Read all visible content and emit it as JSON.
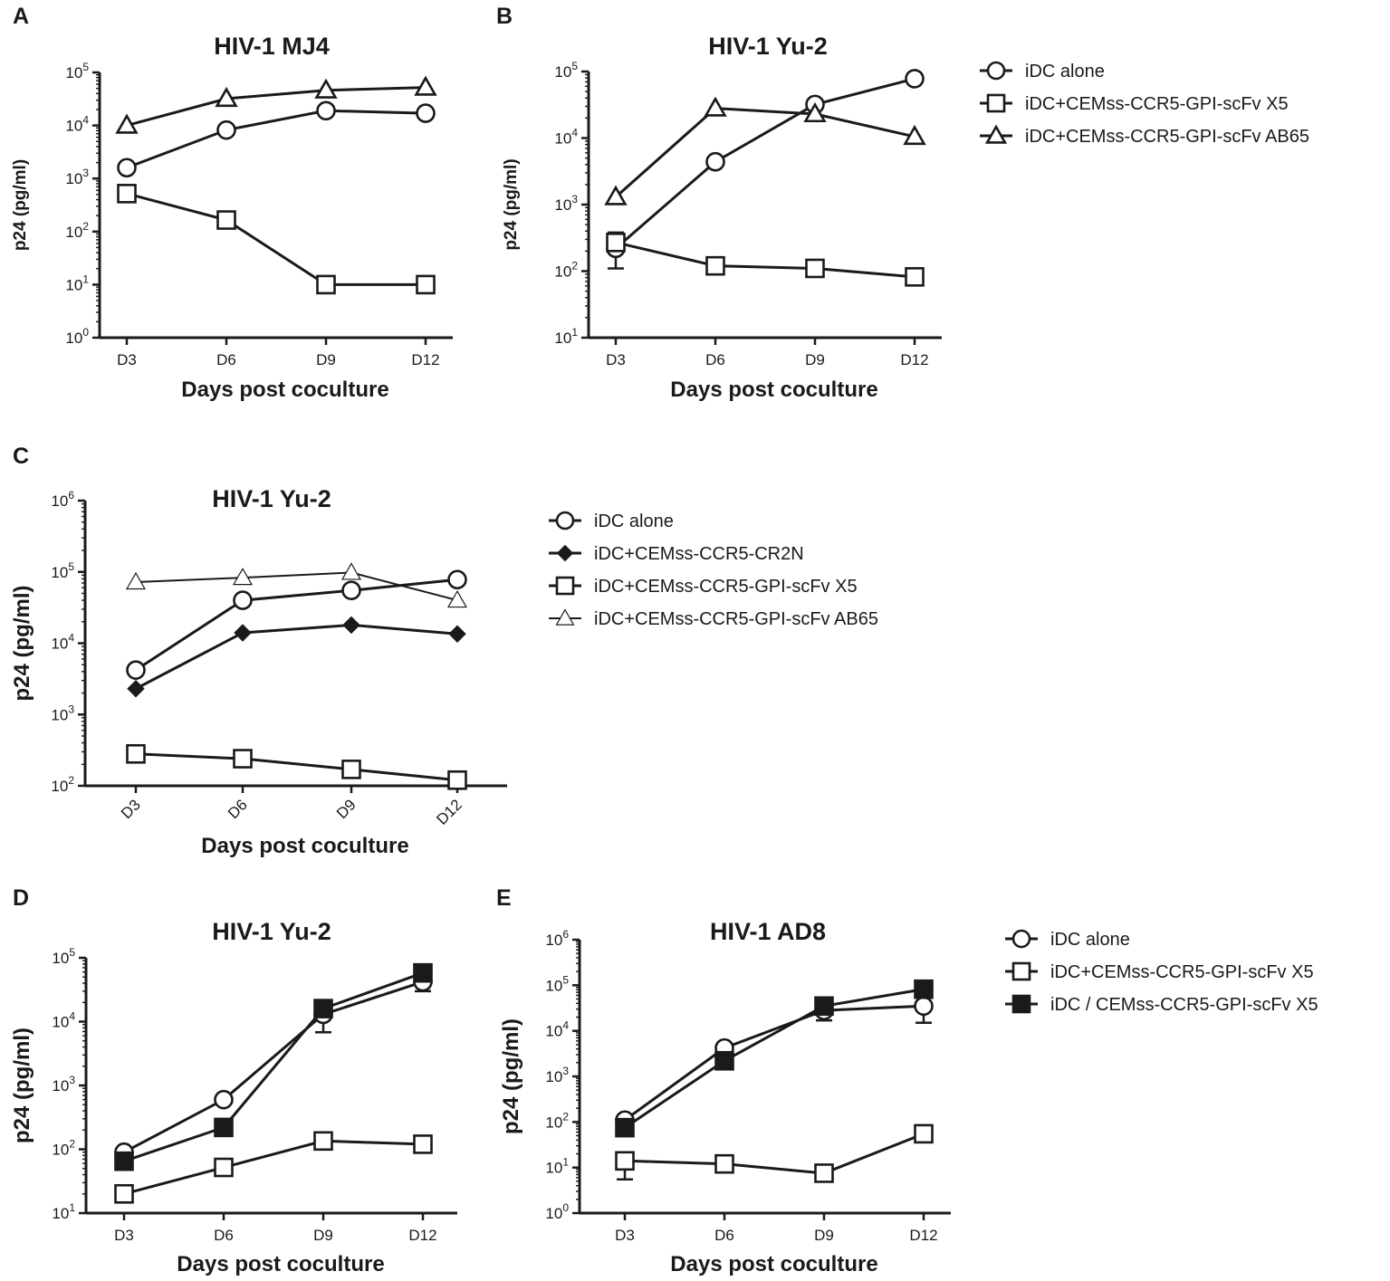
{
  "figure": {
    "colors": {
      "ink": "#1a1a1a",
      "background": "#ffffff"
    }
  },
  "chart_data": [
    {
      "panel": "A",
      "type": "line",
      "title": "HIV-1 MJ4",
      "xlabel": "Days post coculture",
      "ylabel": "p24 (pg/ml)",
      "yscale": "log",
      "ylim": [
        1,
        100000
      ],
      "categories": [
        "D3",
        "D6",
        "D9",
        "D12"
      ],
      "series": [
        {
          "name": "iDC alone",
          "marker": "circle",
          "values": [
            1600,
            8200,
            19000,
            17000
          ]
        },
        {
          "name": "iDC+CEMss-CCR5-GPI-scFv X5",
          "marker": "square",
          "values": [
            520,
            165,
            10,
            10
          ]
        },
        {
          "name": "iDC+CEMss-CCR5-GPI-scFv AB65",
          "marker": "triangle",
          "values": [
            10000,
            32000,
            46000,
            52000
          ]
        }
      ]
    },
    {
      "panel": "B",
      "type": "line",
      "title": "HIV-1 Yu-2",
      "xlabel": "Days post coculture",
      "ylabel": "p24 (pg/ml)",
      "yscale": "log",
      "ylim": [
        10,
        100000
      ],
      "categories": [
        "D3",
        "D6",
        "D9",
        "D12"
      ],
      "legend": [
        "iDC alone",
        "iDC+CEMss-CCR5-GPI-scFv X5",
        "iDC+CEMss-CCR5-GPI-scFv AB65"
      ],
      "series": [
        {
          "name": "iDC alone",
          "marker": "circle",
          "values": [
            220,
            4400,
            32000,
            78000
          ],
          "error": [
            [
              0,
              110,
              380
            ]
          ]
        },
        {
          "name": "iDC+CEMss-CCR5-GPI-scFv X5",
          "marker": "square",
          "values": [
            270,
            120,
            110,
            82
          ]
        },
        {
          "name": "iDC+CEMss-CCR5-GPI-scFv AB65",
          "marker": "triangle",
          "values": [
            1300,
            28000,
            23000,
            10500
          ]
        }
      ]
    },
    {
      "panel": "C",
      "type": "line",
      "title": "HIV-1 Yu-2",
      "xlabel": "Days post coculture",
      "ylabel": "p24 (pg/ml)",
      "yscale": "log",
      "ylim": [
        100,
        1000000
      ],
      "categories": [
        "D3",
        "D6",
        "D9",
        "D12"
      ],
      "legend": [
        "iDC alone",
        "iDC+CEMss-CCR5-CR2N",
        "iDC+CEMss-CCR5-GPI-scFv X5",
        "iDC+CEMss-CCR5-GPI-scFv AB65"
      ],
      "series": [
        {
          "name": "iDC alone",
          "marker": "circle",
          "values": [
            4200,
            40000,
            55000,
            78000
          ]
        },
        {
          "name": "iDC+CEMss-CCR5-CR2N",
          "marker": "diamond-filled",
          "values": [
            2300,
            14000,
            18000,
            13500
          ]
        },
        {
          "name": "iDC+CEMss-CCR5-GPI-scFv X5",
          "marker": "square",
          "values": [
            280,
            240,
            170,
            120
          ]
        },
        {
          "name": "iDC+CEMss-CCR5-GPI-scFv AB65",
          "marker": "triangle-thin",
          "values": [
            72000,
            83000,
            98000,
            40000
          ]
        }
      ]
    },
    {
      "panel": "D",
      "type": "line",
      "title": "HIV-1 Yu-2",
      "xlabel": "Days post coculture",
      "ylabel": "p24 (pg/ml)",
      "yscale": "log",
      "ylim": [
        10,
        100000
      ],
      "categories": [
        "D3",
        "D6",
        "D9",
        "D12"
      ],
      "series": [
        {
          "name": "iDC alone",
          "marker": "circle",
          "values": [
            90,
            600,
            13000,
            42000
          ],
          "error": [
            [
              2,
              6800,
              16000
            ],
            [
              3,
              30000,
              50000
            ]
          ]
        },
        {
          "name": "iDC+CEMss-CCR5-GPI-scFv X5",
          "marker": "square",
          "values": [
            20,
            52,
            135,
            120
          ]
        },
        {
          "name": "iDC / CEMss-CCR5-GPI-scFv X5",
          "marker": "square-filled",
          "values": [
            65,
            220,
            16000,
            58000
          ]
        }
      ]
    },
    {
      "panel": "E",
      "type": "line",
      "title": "HIV-1 AD8",
      "xlabel": "Days post coculture",
      "ylabel": "p24 (pg/ml)",
      "yscale": "log",
      "ylim": [
        1,
        1000000
      ],
      "categories": [
        "D3",
        "D6",
        "D9",
        "D12"
      ],
      "legend": [
        "iDC alone",
        "iDC+CEMss-CCR5-GPI-scFv X5",
        "iDC / CEMss-CCR5-GPI-scFv X5"
      ],
      "series": [
        {
          "name": "iDC alone",
          "marker": "circle",
          "values": [
            110,
            4200,
            28000,
            35000
          ],
          "error": [
            [
              2,
              17000,
              40000
            ],
            [
              3,
              15000,
              60000
            ]
          ]
        },
        {
          "name": "iDC+CEMss-CCR5-GPI-scFv X5",
          "marker": "square",
          "values": [
            14,
            12,
            7.5,
            55
          ],
          "error": [
            [
              0,
              5.5,
              20
            ]
          ]
        },
        {
          "name": "iDC / CEMss-CCR5-GPI-scFv X5",
          "marker": "square-filled",
          "values": [
            75,
            2200,
            35000,
            82000
          ]
        }
      ]
    }
  ]
}
